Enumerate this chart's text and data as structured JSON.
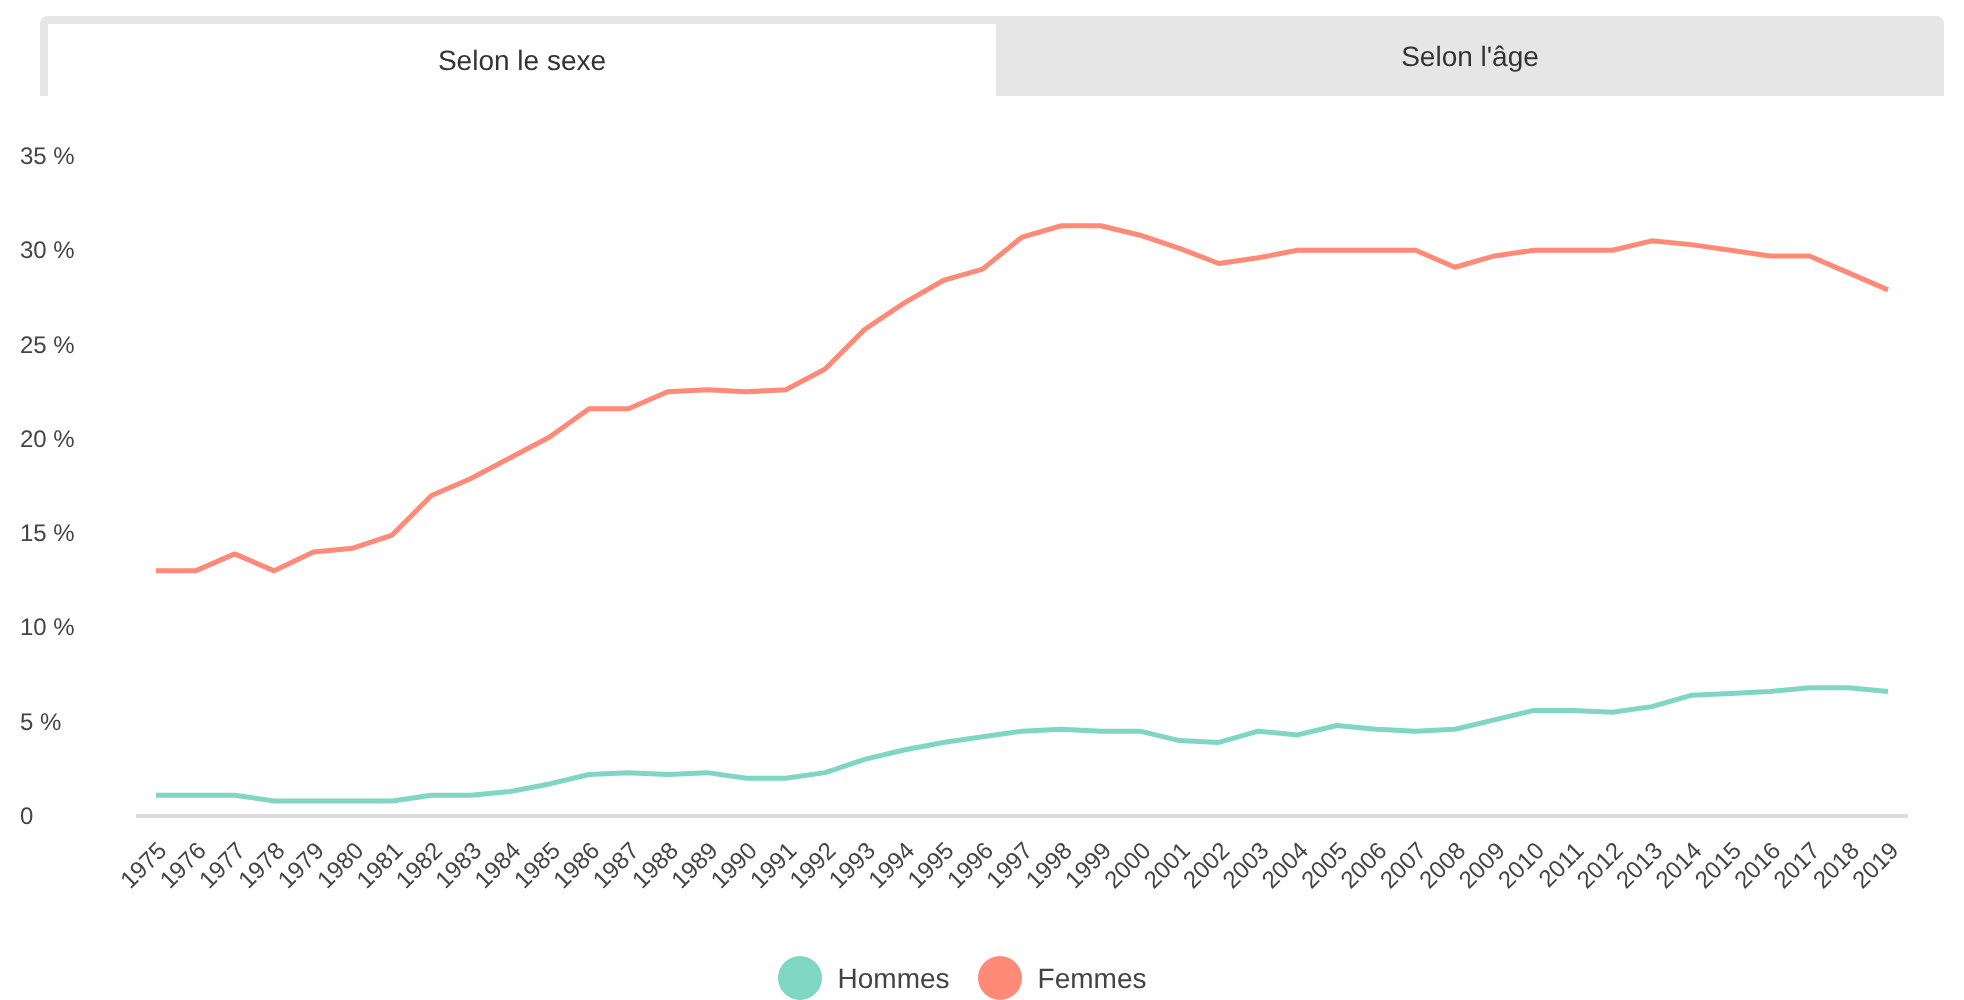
{
  "chart_data": {
    "type": "line",
    "annotations": [
      "Selon le sexe",
      "Selon l'âge"
    ],
    "categories": [
      "1975",
      "1976",
      "1977",
      "1978",
      "1979",
      "1980",
      "1981",
      "1982",
      "1983",
      "1984",
      "1985",
      "1986",
      "1987",
      "1988",
      "1989",
      "1990",
      "1991",
      "1992",
      "1993",
      "1994",
      "1995",
      "1996",
      "1997",
      "1998",
      "1999",
      "2000",
      "2001",
      "2002",
      "2003",
      "2004",
      "2005",
      "2006",
      "2007",
      "2008",
      "2009",
      "2010",
      "2011",
      "2012",
      "2013",
      "2014",
      "2015",
      "2016",
      "2017",
      "2018",
      "2019"
    ],
    "series": [
      {
        "name": "Hommes",
        "color": "#7fd6c2",
        "values": [
          1.1,
          1.1,
          1.1,
          0.8,
          0.8,
          0.8,
          0.8,
          1.1,
          1.1,
          1.3,
          1.7,
          2.2,
          2.3,
          2.2,
          2.3,
          2.0,
          2.0,
          2.3,
          3.0,
          3.5,
          3.9,
          4.2,
          4.5,
          4.6,
          4.5,
          4.5,
          4.0,
          3.9,
          4.5,
          4.3,
          4.8,
          4.6,
          4.5,
          4.6,
          5.1,
          5.6,
          5.6,
          5.5,
          5.8,
          6.4,
          6.5,
          6.6,
          6.8,
          6.8,
          6.6
        ]
      },
      {
        "name": "Femmes",
        "color": "#ff8a78",
        "values": [
          13.0,
          13.0,
          13.9,
          13.0,
          14.0,
          14.2,
          14.9,
          17.0,
          17.9,
          19.0,
          20.1,
          21.6,
          21.6,
          22.5,
          22.6,
          22.5,
          22.6,
          23.7,
          25.8,
          27.2,
          28.4,
          29.0,
          30.7,
          31.3,
          31.3,
          30.8,
          30.1,
          29.3,
          29.6,
          30.0,
          30.0,
          30.0,
          30.0,
          29.1,
          29.7,
          30.0,
          30.0,
          30.0,
          30.5,
          30.3,
          30.0,
          29.7,
          29.7,
          28.8,
          27.9
        ]
      }
    ],
    "ylim": [
      0,
      35
    ],
    "yticks": [
      0,
      {
        "value": 5,
        "label": "5 %"
      },
      {
        "value": 10,
        "label": "10 %"
      },
      {
        "value": 15,
        "label": "15 %"
      },
      {
        "value": 20,
        "label": "20 %"
      },
      {
        "value": 25,
        "label": "25 %"
      },
      {
        "value": 30,
        "label": "30 %"
      },
      {
        "value": 35,
        "label": "35 %"
      }
    ],
    "grid": false,
    "legend": "bottom"
  }
}
